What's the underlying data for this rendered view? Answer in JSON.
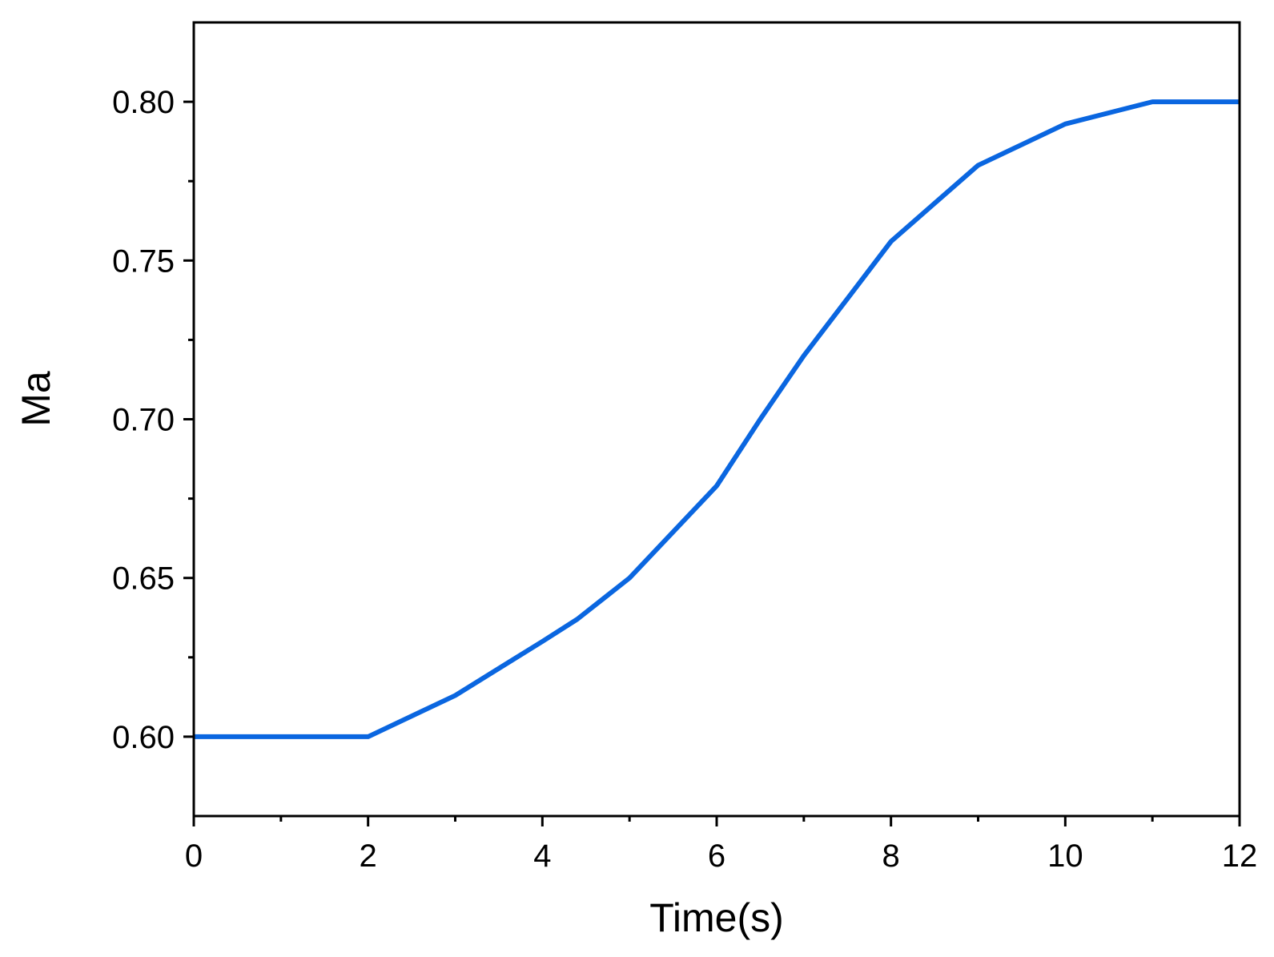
{
  "chart_data": {
    "type": "line",
    "title": "",
    "xlabel": "Time(s)",
    "ylabel": "Ma",
    "xlim": [
      0,
      12
    ],
    "ylim": [
      0.575,
      0.825
    ],
    "x_ticks": [
      0,
      2,
      4,
      6,
      8,
      10,
      12
    ],
    "x_tick_labels": [
      "0",
      "2",
      "4",
      "6",
      "8",
      "10",
      "12"
    ],
    "x_minor_ticks": [
      1,
      3,
      5,
      7,
      9,
      11
    ],
    "y_ticks": [
      0.6,
      0.65,
      0.7,
      0.75,
      0.8
    ],
    "y_tick_labels": [
      "0.60",
      "0.65",
      "0.70",
      "0.75",
      "0.80"
    ],
    "y_minor_ticks": [
      0.625,
      0.675,
      0.725,
      0.775
    ],
    "grid": false,
    "legend": "none",
    "series": [
      {
        "color": "#0a66e0",
        "x": [
          0,
          1,
          2,
          3,
          4,
          4.4,
          5,
          6,
          6.5,
          7,
          7.5,
          8,
          8.5,
          9,
          10,
          11,
          12
        ],
        "values": [
          0.6,
          0.6,
          0.6,
          0.613,
          0.63,
          0.637,
          0.65,
          0.679,
          0.7,
          0.72,
          0.738,
          0.756,
          0.768,
          0.78,
          0.793,
          0.8,
          0.8
        ]
      }
    ]
  }
}
